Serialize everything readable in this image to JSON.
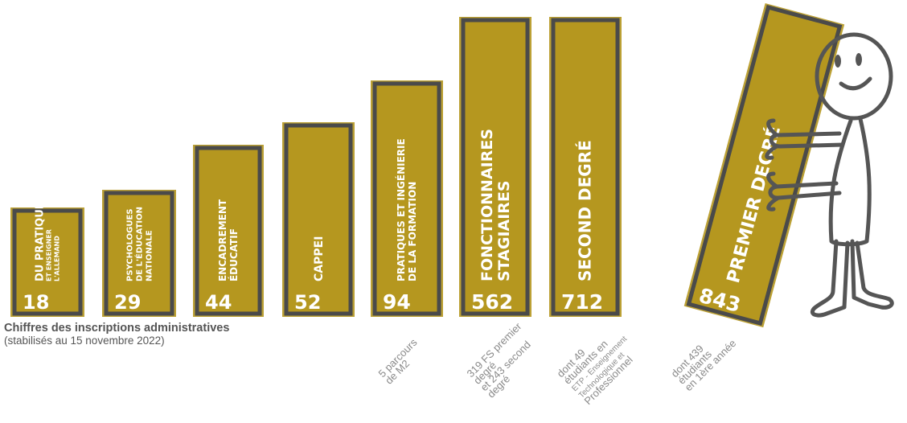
{
  "caption": {
    "line1": "Chiffres des inscriptions administratives",
    "line2": "(stabilisés au 15 novembre 2022)"
  },
  "colors": {
    "fill": "#b5971f",
    "border": "#4a4a4a",
    "text": "#ffffff",
    "note": "#8a8a8a"
  },
  "chart_data": {
    "type": "bar",
    "title": "",
    "xlabel": "",
    "ylabel": "",
    "categories": [
      "DU PRATIQUER ET ENSEIGNER L'ALLEMAND",
      "PSYCHOLOGUES DE L'ÉDUCATION NATIONALE",
      "ENCADREMENT ÉDUCATIF",
      "CAPPEI",
      "PRATIQUES ET INGÉNIERIE DE LA FORMATION",
      "FONCTIONNAIRES STAGIAIRES",
      "SECOND DEGRÉ",
      "PREMIER DEGRÉ"
    ],
    "values": [
      18,
      29,
      44,
      52,
      94,
      562,
      712,
      843
    ],
    "bars": [
      {
        "lines": [
          "DU PRATIQUER",
          "ET ENSEIGNER",
          "L'ALLEMAND"
        ],
        "value": 18,
        "note": []
      },
      {
        "lines": [
          "PSYCHOLOGUES",
          "DE L'ÉDUCATION",
          "NATIONALE"
        ],
        "value": 29,
        "note": []
      },
      {
        "lines": [
          "ENCADREMENT",
          "ÉDUCATIF"
        ],
        "value": 44,
        "note": []
      },
      {
        "lines": [
          "CAPPEI"
        ],
        "value": 52,
        "note": []
      },
      {
        "lines": [
          "PRATIQUES ET INGÉNIERIE",
          "DE LA FORMATION"
        ],
        "value": 94,
        "note": [
          "5 parcours",
          "de M2"
        ]
      },
      {
        "lines": [
          "FONCTIONNAIRES",
          "STAGIAIRES"
        ],
        "value": 562,
        "note": [
          "319 FS premier",
          "degré",
          "et 243 second",
          "degré"
        ]
      },
      {
        "lines": [
          "SECOND DEGRÉ"
        ],
        "value": 712,
        "note": [
          "dont 49",
          "étudiants en",
          "ETP - Enseignement",
          "Technologique et",
          "Professionnel"
        ]
      },
      {
        "lines": [
          "PREMIER DEGRÉ"
        ],
        "value": 843,
        "note": [
          "dont 439",
          "étudiants",
          "en 1ère année"
        ]
      }
    ]
  }
}
